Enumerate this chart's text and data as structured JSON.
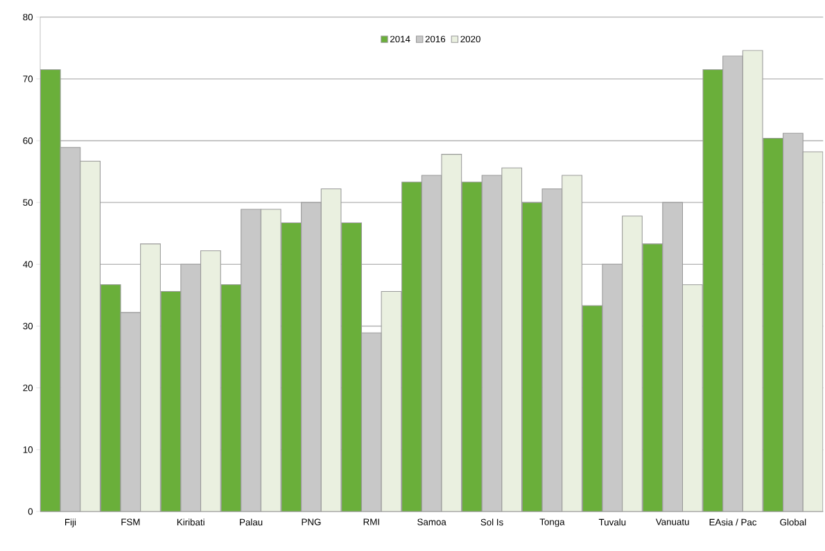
{
  "chart_data": {
    "type": "bar",
    "categories": [
      "Fiji",
      "FSM",
      "Kiribati",
      "Palau",
      "PNG",
      "RMI",
      "Samoa",
      "Sol Is",
      "Tonga",
      "Tuvalu",
      "Vanuatu",
      "EAsia / Pac",
      "Global"
    ],
    "series": [
      {
        "name": "2014",
        "color": "#6aaf3a",
        "values": [
          71.5,
          36.7,
          35.6,
          36.7,
          46.7,
          46.7,
          53.3,
          53.3,
          50.0,
          33.3,
          43.3,
          71.5,
          60.4
        ]
      },
      {
        "name": "2016",
        "color": "#c8c8c8",
        "values": [
          58.9,
          32.2,
          40.0,
          48.9,
          50.0,
          28.9,
          54.4,
          54.4,
          52.2,
          40.0,
          50.0,
          73.7,
          61.2
        ]
      },
      {
        "name": "2020",
        "color": "#eaf0e0",
        "values": [
          56.7,
          43.3,
          42.2,
          48.9,
          52.2,
          35.6,
          57.8,
          55.6,
          54.4,
          47.8,
          36.7,
          74.6,
          58.2
        ]
      }
    ],
    "ylim": [
      0,
      80
    ],
    "yticks": [
      0,
      10,
      20,
      30,
      40,
      50,
      60,
      70,
      80
    ],
    "grid": "y",
    "legend": "top"
  }
}
